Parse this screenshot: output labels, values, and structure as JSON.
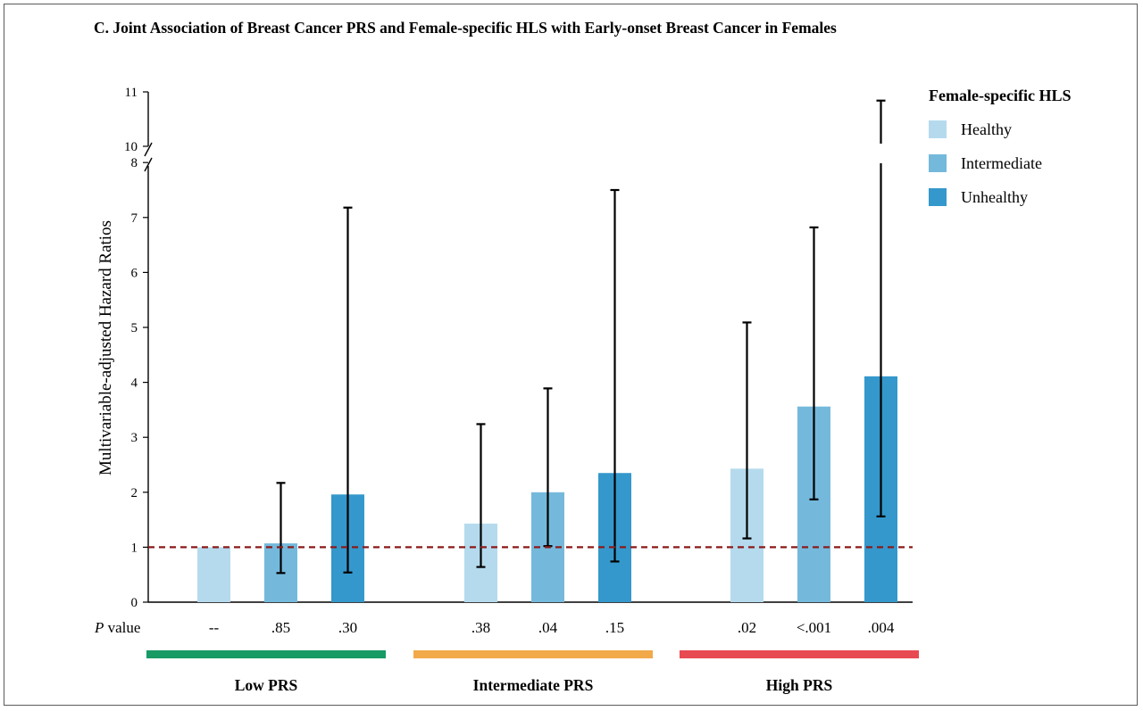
{
  "chart_data": {
    "type": "bar",
    "title": "C.    Joint Association of Breast Cancer PRS and Female-specific HLS with Early-onset Breast Cancer in Females",
    "ylabel": "Multivariable-adjusted Hazard Ratios",
    "y_ticks_lower": [
      "0",
      "1",
      "2",
      "3",
      "4",
      "5",
      "6",
      "7",
      "8"
    ],
    "y_ticks_upper": [
      "10",
      "11"
    ],
    "ylim": [
      0,
      11
    ],
    "axis_break": [
      8,
      10
    ],
    "reference_line": 1,
    "pvalue_label_italic": "P",
    "pvalue_label_rest": " value",
    "legend_title": "Female-specific HLS",
    "series": [
      {
        "name": "Healthy",
        "color": "#b5daed"
      },
      {
        "name": "Intermediate",
        "color": "#74b9dc"
      },
      {
        "name": "Unhealthy",
        "color": "#3498cc"
      }
    ],
    "groups": [
      {
        "label": "Low PRS",
        "color": "#189a64",
        "bars": [
          {
            "hr": 1.0,
            "lo": null,
            "hi": null,
            "p": "--"
          },
          {
            "hr": 1.07,
            "lo": 0.53,
            "hi": 2.17,
            "p": ".85"
          },
          {
            "hr": 1.96,
            "lo": 0.54,
            "hi": 7.18,
            "p": ".30"
          }
        ]
      },
      {
        "label": "Intermediate PRS",
        "color": "#f2a94a",
        "bars": [
          {
            "hr": 1.43,
            "lo": 0.64,
            "hi": 3.24,
            "p": ".38"
          },
          {
            "hr": 2.0,
            "lo": 1.02,
            "hi": 3.89,
            "p": ".04"
          },
          {
            "hr": 2.35,
            "lo": 0.74,
            "hi": 7.5,
            "p": ".15"
          }
        ]
      },
      {
        "label": "High PRS",
        "color": "#e84a52",
        "bars": [
          {
            "hr": 2.43,
            "lo": 1.16,
            "hi": 5.09,
            "p": ".02"
          },
          {
            "hr": 3.56,
            "lo": 1.87,
            "hi": 6.82,
            "p": "<.001"
          },
          {
            "hr": 4.11,
            "lo": 1.56,
            "hi": 10.84,
            "p": ".004"
          }
        ]
      }
    ]
  }
}
